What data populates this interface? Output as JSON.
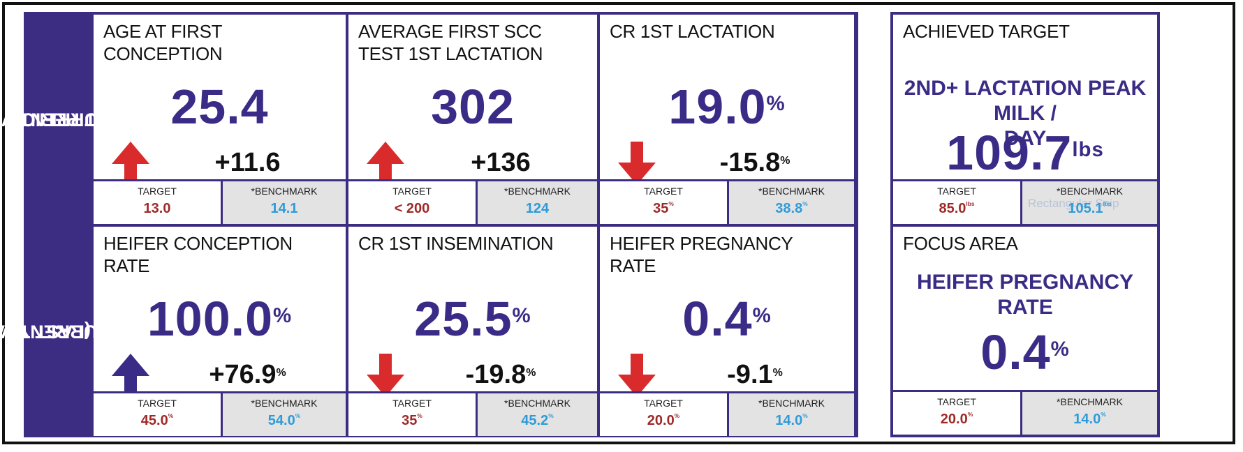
{
  "row_labels": {
    "top": [
      "CURRENT VS.",
      "LAST PERIOD"
    ],
    "bottom": [
      "CURRENT VS.",
      "PERIOD (LAST YEAR)"
    ]
  },
  "cards": [
    {
      "title": [
        "AGE AT FIRST",
        "CONCEPTION"
      ],
      "value": "25.4",
      "value_unit": "",
      "change": "+11.6",
      "change_unit": "",
      "arrow": "up-red-icon",
      "target_label": "TARGET",
      "target": "13.0",
      "target_unit": "",
      "benchmark_label": "*BENCHMARK",
      "benchmark": "14.1",
      "benchmark_unit": ""
    },
    {
      "title": [
        "AVERAGE FIRST SCC",
        "TEST 1ST LACTATION"
      ],
      "value": "302",
      "value_unit": "",
      "change": "+136",
      "change_unit": "",
      "arrow": "up-red-icon",
      "target_label": "TARGET",
      "target": "< 200",
      "target_unit": "",
      "benchmark_label": "*BENCHMARK",
      "benchmark": "124",
      "benchmark_unit": ""
    },
    {
      "title": [
        "CR 1ST LACTATION",
        ""
      ],
      "value": "19.0",
      "value_unit": "%",
      "change": "-15.8",
      "change_unit": "%",
      "arrow": "down-red-icon",
      "target_label": "TARGET",
      "target": "35",
      "target_unit": "%",
      "benchmark_label": "*BENCHMARK",
      "benchmark": "38.8",
      "benchmark_unit": "%"
    },
    {
      "title": [
        "HEIFER CONCEPTION",
        "RATE"
      ],
      "value": "100.0",
      "value_unit": "%",
      "change": "+76.9",
      "change_unit": "%",
      "arrow": "up-blue-icon",
      "target_label": "TARGET",
      "target": "45.0",
      "target_unit": "%",
      "benchmark_label": "*BENCHMARK",
      "benchmark": "54.0",
      "benchmark_unit": "%"
    },
    {
      "title": [
        "CR 1ST INSEMINATION",
        ""
      ],
      "value": "25.5",
      "value_unit": "%",
      "change": "-19.8",
      "change_unit": "%",
      "arrow": "down-red-icon",
      "target_label": "TARGET",
      "target": "35",
      "target_unit": "%",
      "benchmark_label": "*BENCHMARK",
      "benchmark": "45.2",
      "benchmark_unit": "%"
    },
    {
      "title": [
        "HEIFER PREGNANCY",
        "RATE"
      ],
      "value": "0.4",
      "value_unit": "%",
      "change": "-9.1",
      "change_unit": "%",
      "arrow": "down-red-icon",
      "target_label": "TARGET",
      "target": "20.0",
      "target_unit": "%",
      "benchmark_label": "*BENCHMARK",
      "benchmark": "14.0",
      "benchmark_unit": "%"
    }
  ],
  "achieved": {
    "heading": "ACHIEVED TARGET",
    "metric": [
      "2ND+ LACTATION PEAK MILK /",
      "DAY"
    ],
    "value": "109.7",
    "value_unit": "lbs",
    "target_label": "TARGET",
    "target": "85.0",
    "target_unit": "lbs",
    "benchmark_label": "*BENCHMARK",
    "benchmark": "105.1",
    "benchmark_unit": "lbs",
    "watermark": "Rectangular Snip"
  },
  "focus": {
    "heading": "FOCUS AREA",
    "metric": "HEIFER PREGNANCY RATE",
    "value": "0.4",
    "value_unit": "%",
    "target_label": "TARGET",
    "target": "20.0",
    "target_unit": "%",
    "benchmark_label": "*BENCHMARK",
    "benchmark": "14.0",
    "benchmark_unit": "%"
  },
  "colors": {
    "panel": "#3d2d82",
    "value": "#3a2b86",
    "arrow_red": "#d92b2b",
    "arrow_blue": "#3a2b86",
    "target": "#9e2a28",
    "benchmark": "#2e9bd8"
  }
}
